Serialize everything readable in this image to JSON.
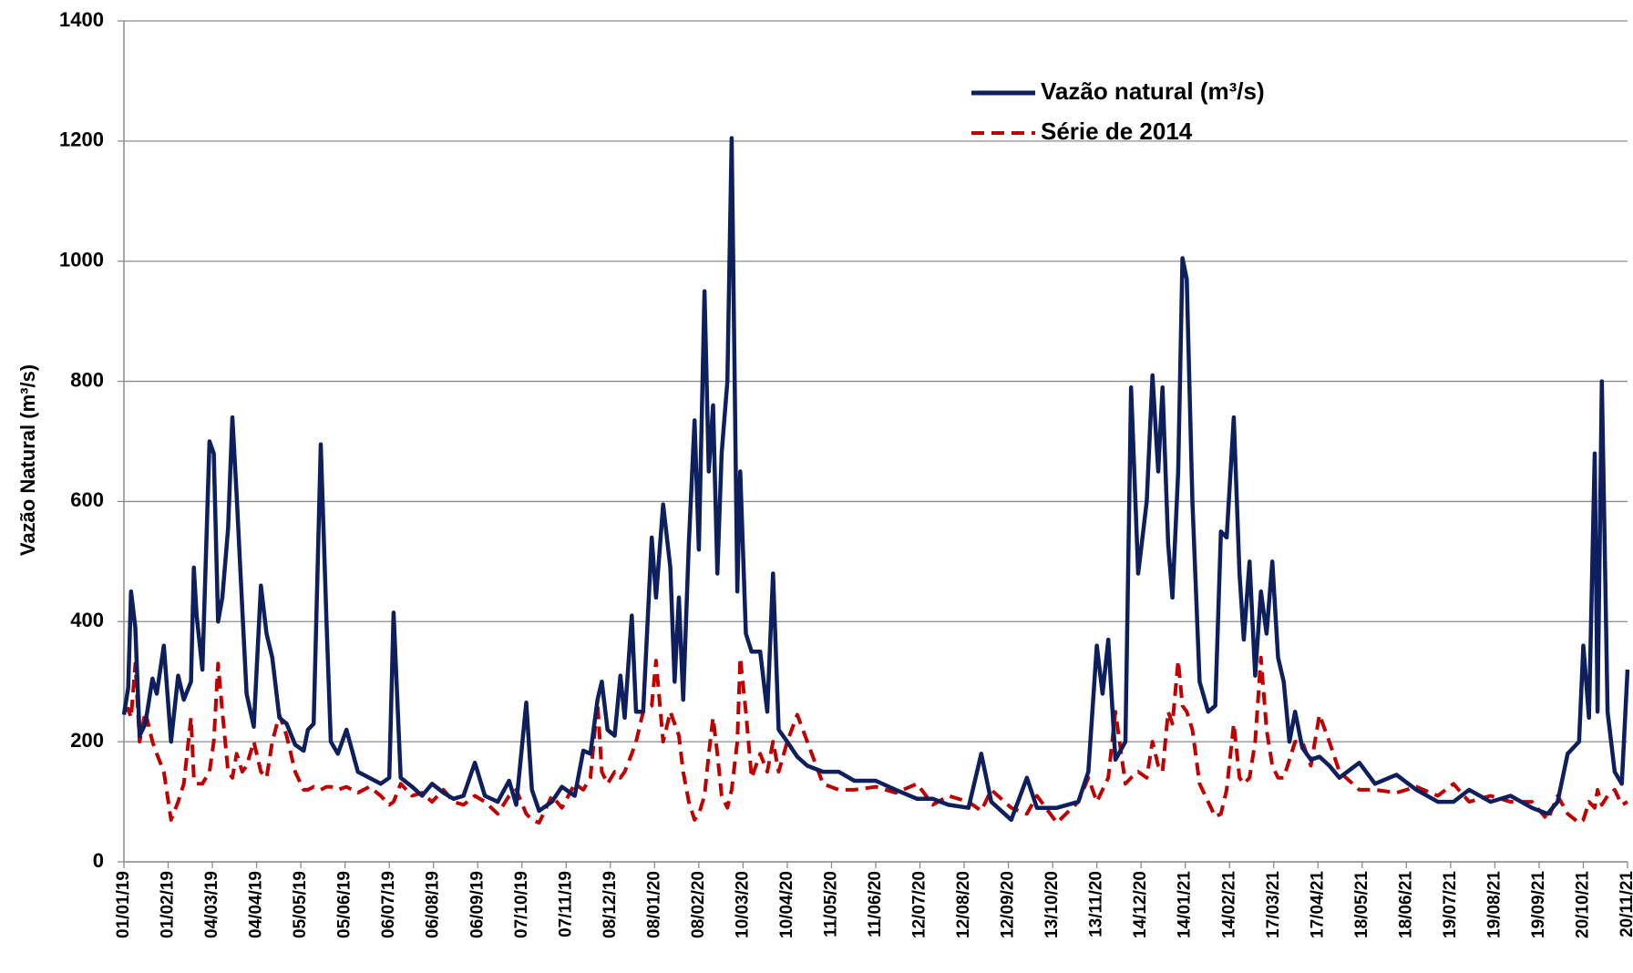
{
  "chart_data": {
    "type": "line",
    "y_label": "Vazão Natural  (m³/s)",
    "x": [
      "01/01/19",
      "04/01/19",
      "06/01/19",
      "09/01/19",
      "12/01/19",
      "16/01/19",
      "21/01/19",
      "24/01/19",
      "29/01/19",
      "03/02/19",
      "08/02/19",
      "12/02/19",
      "17/02/19",
      "19/02/19",
      "21/02/19",
      "25/02/19",
      "02/03/19",
      "05/03/19",
      "08/03/19",
      "11/03/19",
      "15/03/19",
      "18/03/19",
      "21/03/19",
      "25/03/19",
      "28/03/19",
      "02/04/19",
      "07/04/19",
      "11/04/19",
      "15/04/19",
      "20/04/19",
      "25/04/19",
      "01/05/19",
      "07/05/19",
      "10/05/19",
      "14/05/19",
      "19/05/19",
      "23/05/19",
      "26/05/19",
      "31/05/19",
      "06/06/19",
      "14/06/19",
      "22/06/19",
      "30/06/19",
      "06/07/19",
      "09/07/19",
      "14/07/19",
      "22/07/19",
      "29/07/19",
      "05/08/19",
      "13/08/19",
      "20/08/19",
      "27/08/19",
      "04/09/19",
      "11/09/19",
      "20/09/19",
      "28/09/19",
      "03/10/19",
      "10/10/19",
      "14/10/19",
      "19/10/19",
      "28/10/19",
      "04/11/19",
      "13/11/19",
      "19/11/19",
      "24/11/19",
      "29/11/19",
      "02/12/19",
      "06/12/19",
      "11/12/19",
      "15/12/19",
      "18/12/19",
      "23/12/19",
      "26/12/19",
      "31/12/19",
      "06/01/20",
      "09/01/20",
      "14/01/20",
      "19/01/20",
      "22/01/20",
      "25/01/20",
      "28/01/20",
      "01/02/20",
      "05/02/20",
      "08/02/20",
      "12/02/20",
      "15/02/20",
      "18/02/20",
      "21/02/20",
      "24/02/20",
      "28/02/20",
      "02/03/20",
      "06/03/20",
      "08/03/20",
      "12/03/20",
      "16/03/20",
      "22/03/20",
      "27/03/20",
      "31/03/20",
      "04/04/20",
      "10/04/20",
      "17/04/20",
      "24/04/20",
      "05/05/20",
      "16/05/20",
      "27/05/20",
      "11/06/20",
      "25/06/20",
      "10/07/20",
      "21/07/20",
      "01/08/20",
      "15/08/20",
      "24/08/20",
      "31/08/20",
      "14/09/20",
      "25/09/20",
      "02/10/20",
      "16/10/20",
      "31/10/20",
      "07/11/20",
      "13/11/20",
      "17/11/20",
      "21/11/20",
      "26/11/20",
      "03/12/20",
      "07/12/20",
      "12/12/20",
      "18/12/20",
      "22/12/20",
      "26/12/20",
      "29/12/20",
      "02/01/21",
      "05/01/21",
      "09/01/21",
      "12/01/21",
      "15/01/21",
      "19/01/21",
      "24/01/21",
      "30/01/21",
      "04/02/21",
      "08/02/21",
      "12/02/21",
      "17/02/21",
      "21/02/21",
      "24/02/21",
      "28/02/21",
      "04/03/21",
      "08/03/21",
      "12/03/21",
      "16/03/21",
      "20/03/21",
      "24/03/21",
      "28/03/21",
      "01/04/21",
      "06/04/21",
      "12/04/21",
      "18/04/21",
      "25/04/21",
      "02/05/21",
      "16/05/21",
      "27/05/21",
      "11/06/21",
      "25/06/21",
      "10/07/21",
      "21/07/21",
      "01/08/21",
      "16/08/21",
      "30/08/21",
      "14/09/21",
      "25/09/21",
      "02/10/21",
      "09/10/21",
      "17/10/21",
      "20/10/21",
      "24/10/21",
      "28/10/21",
      "30/10/21",
      "02/11/21",
      "06/11/21",
      "11/11/21",
      "16/11/21",
      "20/11/21"
    ],
    "series": [
      {
        "name": "Vazão natural (m³/s)",
        "color": "#0d1f5c",
        "dash": false,
        "values": [
          245,
          290,
          450,
          390,
          210,
          230,
          305,
          280,
          360,
          200,
          310,
          270,
          300,
          490,
          410,
          320,
          700,
          680,
          400,
          440,
          555,
          740,
          610,
          420,
          280,
          225,
          460,
          380,
          340,
          240,
          230,
          195,
          185,
          220,
          230,
          695,
          400,
          200,
          180,
          220,
          150,
          140,
          130,
          140,
          415,
          140,
          125,
          110,
          130,
          115,
          105,
          110,
          165,
          110,
          100,
          135,
          95,
          265,
          120,
          85,
          100,
          125,
          110,
          185,
          180,
          270,
          300,
          220,
          210,
          310,
          240,
          410,
          250,
          250,
          540,
          440,
          595,
          490,
          300,
          440,
          270,
          530,
          735,
          520,
          950,
          650,
          760,
          480,
          680,
          800,
          1205,
          450,
          650,
          380,
          350,
          350,
          250,
          480,
          220,
          200,
          175,
          160,
          150,
          150,
          135,
          135,
          120,
          105,
          105,
          95,
          90,
          180,
          100,
          70,
          140,
          90,
          90,
          100,
          150,
          360,
          280,
          370,
          170,
          200,
          790,
          480,
          600,
          810,
          650,
          790,
          530,
          440,
          650,
          1005,
          970,
          600,
          300,
          250,
          260,
          550,
          540,
          740,
          480,
          370,
          500,
          310,
          450,
          380,
          500,
          340,
          300,
          200,
          250,
          190,
          170,
          175,
          160,
          140,
          165,
          130,
          145,
          120,
          100,
          100,
          120,
          100,
          110,
          90,
          80,
          100,
          180,
          200,
          360,
          240,
          680,
          250,
          800,
          250,
          150,
          130,
          320
        ]
      },
      {
        "name": "Série de 2014",
        "color": "#c00000",
        "dash": true,
        "values": [
          250,
          255,
          240,
          330,
          200,
          250,
          200,
          180,
          150,
          70,
          100,
          130,
          240,
          140,
          130,
          130,
          150,
          200,
          330,
          250,
          150,
          140,
          180,
          150,
          160,
          200,
          150,
          140,
          200,
          245,
          210,
          150,
          120,
          120,
          125,
          120,
          125,
          125,
          120,
          125,
          115,
          125,
          110,
          95,
          100,
          130,
          110,
          115,
          100,
          120,
          100,
          95,
          110,
          100,
          80,
          110,
          120,
          80,
          70,
          65,
          110,
          90,
          130,
          120,
          140,
          265,
          150,
          130,
          150,
          140,
          150,
          180,
          200,
          250,
          260,
          335,
          200,
          250,
          230,
          210,
          150,
          100,
          70,
          80,
          110,
          180,
          240,
          180,
          110,
          90,
          120,
          200,
          340,
          250,
          140,
          180,
          150,
          200,
          150,
          200,
          245,
          200,
          130,
          120,
          120,
          125,
          115,
          130,
          95,
          110,
          100,
          85,
          120,
          90,
          80,
          110,
          65,
          100,
          140,
          100,
          120,
          140,
          250,
          130,
          140,
          150,
          140,
          200,
          160,
          150,
          250,
          230,
          335,
          260,
          250,
          220,
          130,
          100,
          75,
          80,
          120,
          230,
          140,
          130,
          140,
          200,
          340,
          220,
          160,
          140,
          140,
          170,
          200,
          200,
          160,
          245,
          200,
          150,
          120,
          120,
          115,
          125,
          110,
          130,
          100,
          110,
          100,
          100,
          70,
          110,
          80,
          65,
          70,
          100,
          90,
          120,
          95,
          110,
          120,
          95,
          100
        ]
      }
    ],
    "xlim": [
      "01/01/19",
      "20/11/21"
    ],
    "xticks": [
      "01/01/19",
      "01/02/19",
      "04/03/19",
      "04/04/19",
      "05/05/19",
      "05/06/19",
      "06/07/19",
      "06/08/19",
      "06/09/19",
      "07/10/19",
      "07/11/19",
      "08/12/19",
      "08/01/20",
      "08/02/20",
      "10/03/20",
      "10/04/20",
      "11/05/20",
      "11/06/20",
      "12/07/20",
      "12/08/20",
      "12/09/20",
      "13/10/20",
      "13/11/20",
      "14/12/20",
      "14/01/21",
      "14/02/21",
      "17/03/21",
      "17/04/21",
      "18/05/21",
      "18/06/21",
      "19/07/21",
      "19/08/21",
      "19/09/21",
      "20/10/21",
      "20/11/21"
    ],
    "ylim": [
      0,
      1400
    ],
    "yticks": [
      0,
      200,
      400,
      600,
      800,
      1000,
      1200,
      1400
    ],
    "grid": true
  }
}
